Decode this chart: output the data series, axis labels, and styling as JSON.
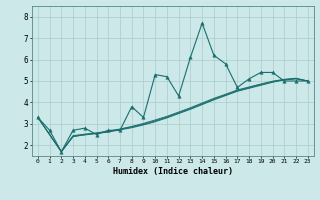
{
  "xlabel": "Humidex (Indice chaleur)",
  "ylabel": "",
  "bg_color": "#cce8e8",
  "grid_color": "#aacccc",
  "line_color": "#1a6e6e",
  "xlim": [
    -0.5,
    23.5
  ],
  "ylim": [
    1.5,
    8.5
  ],
  "yticks": [
    2,
    3,
    4,
    5,
    6,
    7,
    8
  ],
  "xticks": [
    0,
    1,
    2,
    3,
    4,
    5,
    6,
    7,
    8,
    9,
    10,
    11,
    12,
    13,
    14,
    15,
    16,
    17,
    18,
    19,
    20,
    21,
    22,
    23
  ],
  "series1_x": [
    0,
    1,
    2,
    3,
    4,
    5,
    6,
    7,
    8,
    9,
    10,
    11,
    12,
    13,
    14,
    15,
    16,
    17,
    18,
    19,
    20,
    21,
    22,
    23
  ],
  "series1_y": [
    3.3,
    2.7,
    1.7,
    2.7,
    2.8,
    2.5,
    2.7,
    2.7,
    3.8,
    3.3,
    5.3,
    5.2,
    4.3,
    6.1,
    7.7,
    6.2,
    5.8,
    4.7,
    5.1,
    5.4,
    5.4,
    5.0,
    5.0,
    5.0
  ],
  "series2_x": [
    0,
    2,
    3,
    4,
    5,
    6,
    7,
    8,
    9,
    10,
    11,
    12,
    13,
    14,
    15,
    16,
    17,
    18,
    19,
    20,
    21,
    22,
    23
  ],
  "series2_y": [
    3.3,
    1.7,
    2.4,
    2.5,
    2.55,
    2.62,
    2.72,
    2.82,
    2.95,
    3.1,
    3.28,
    3.48,
    3.68,
    3.9,
    4.12,
    4.32,
    4.52,
    4.66,
    4.8,
    4.94,
    5.05,
    5.1,
    5.0
  ],
  "series3_x": [
    0,
    2,
    3,
    4,
    5,
    6,
    7,
    8,
    9,
    10,
    11,
    12,
    13,
    14,
    15,
    16,
    17,
    18,
    19,
    20,
    21,
    22,
    23
  ],
  "series3_y": [
    3.3,
    1.7,
    2.45,
    2.52,
    2.58,
    2.66,
    2.76,
    2.88,
    3.02,
    3.18,
    3.35,
    3.55,
    3.75,
    3.97,
    4.19,
    4.38,
    4.58,
    4.72,
    4.86,
    4.99,
    5.08,
    5.13,
    5.0
  ],
  "series4_x": [
    0,
    2,
    3,
    4,
    5,
    6,
    7,
    8,
    9,
    10,
    11,
    12,
    13,
    14,
    15,
    16,
    17,
    18,
    19,
    20,
    21,
    22,
    23
  ],
  "series4_y": [
    3.3,
    1.7,
    2.42,
    2.48,
    2.56,
    2.64,
    2.74,
    2.85,
    2.98,
    3.14,
    3.31,
    3.51,
    3.71,
    3.93,
    4.15,
    4.35,
    4.55,
    4.69,
    4.83,
    4.97,
    5.06,
    5.11,
    5.0
  ]
}
